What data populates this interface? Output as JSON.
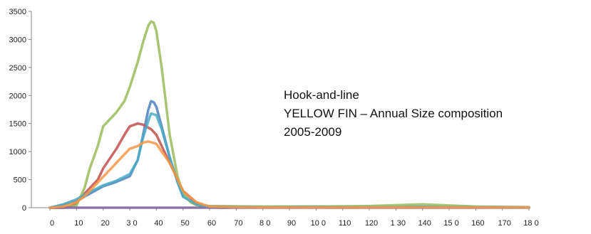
{
  "chart_data": {
    "type": "line",
    "title": "",
    "xlabel": "",
    "ylabel": "",
    "ylim": [
      0,
      3500
    ],
    "xlim": [
      0,
      180
    ],
    "y_ticks": [
      "0",
      "500",
      "1000",
      "1500",
      "2000",
      "2500",
      "3000",
      "3500"
    ],
    "x_ticks": [
      "0",
      "10",
      "20",
      "3 0",
      "40",
      "50",
      "60",
      "70",
      "8 0",
      "90",
      "10 0",
      "110",
      "120",
      "1 30",
      "140",
      "15 0",
      "160",
      "170",
      "18 0"
    ],
    "grid": false,
    "annotation": [
      "Hook-and-line",
      "YELLOW FIN – Annual Size composition",
      "2005-2009"
    ],
    "series": [
      {
        "color": "#4f81bd",
        "x": [
          0,
          5,
          10,
          15,
          20,
          25,
          30,
          33,
          35,
          37,
          38,
          39,
          40,
          42,
          45,
          48,
          50,
          55,
          60,
          70,
          80,
          90,
          100,
          110,
          120,
          140,
          160,
          180
        ],
        "y": [
          0,
          50,
          120,
          250,
          380,
          460,
          560,
          850,
          1300,
          1750,
          1900,
          1880,
          1800,
          1450,
          900,
          450,
          200,
          50,
          20,
          10,
          10,
          15,
          20,
          10,
          10,
          15,
          10,
          5
        ]
      },
      {
        "color": "#c0504d",
        "x": [
          0,
          5,
          8,
          10,
          12,
          15,
          18,
          20,
          25,
          28,
          30,
          33,
          35,
          38,
          40,
          42,
          45,
          48,
          50,
          55,
          60,
          65,
          70,
          80,
          100,
          120,
          140,
          160,
          180
        ],
        "y": [
          0,
          0,
          30,
          80,
          200,
          350,
          500,
          700,
          1050,
          1300,
          1450,
          1500,
          1480,
          1400,
          1300,
          1100,
          800,
          500,
          300,
          80,
          10,
          0,
          10,
          5,
          5,
          5,
          5,
          5,
          5
        ]
      },
      {
        "color": "#9bbb59",
        "x": [
          0,
          5,
          10,
          13,
          15,
          18,
          20,
          23,
          25,
          28,
          30,
          33,
          35,
          37,
          38,
          39,
          40,
          42,
          45,
          48,
          50,
          53,
          55,
          60,
          80,
          100,
          120,
          140,
          160,
          180
        ],
        "y": [
          0,
          0,
          40,
          350,
          700,
          1100,
          1450,
          1600,
          1700,
          1900,
          2150,
          2600,
          2950,
          3250,
          3320,
          3300,
          3150,
          2500,
          1300,
          550,
          250,
          90,
          50,
          30,
          20,
          20,
          30,
          60,
          20,
          10
        ]
      },
      {
        "color": "#8064a2",
        "x": [
          0,
          20,
          40,
          60,
          80,
          100,
          120,
          140,
          160,
          180
        ],
        "y": [
          0,
          0,
          0,
          0,
          0,
          0,
          0,
          0,
          0,
          0
        ]
      },
      {
        "color": "#4bacc6",
        "x": [
          0,
          5,
          10,
          15,
          20,
          25,
          30,
          33,
          35,
          37,
          38,
          40,
          42,
          45,
          48,
          50,
          55,
          60,
          80,
          100,
          120,
          140,
          160,
          180
        ],
        "y": [
          0,
          60,
          150,
          280,
          400,
          480,
          600,
          850,
          1250,
          1550,
          1680,
          1650,
          1400,
          900,
          450,
          200,
          60,
          20,
          10,
          10,
          10,
          10,
          10,
          5
        ]
      },
      {
        "color": "#f79646",
        "x": [
          0,
          5,
          10,
          13,
          15,
          18,
          20,
          23,
          25,
          28,
          30,
          33,
          35,
          37,
          40,
          42,
          45,
          48,
          50,
          55,
          60,
          70,
          80,
          100,
          120,
          140,
          160,
          180
        ],
        "y": [
          0,
          20,
          100,
          200,
          300,
          450,
          550,
          700,
          800,
          950,
          1050,
          1100,
          1160,
          1180,
          1140,
          1000,
          800,
          500,
          300,
          100,
          20,
          10,
          5,
          5,
          5,
          5,
          5,
          5
        ]
      }
    ]
  }
}
